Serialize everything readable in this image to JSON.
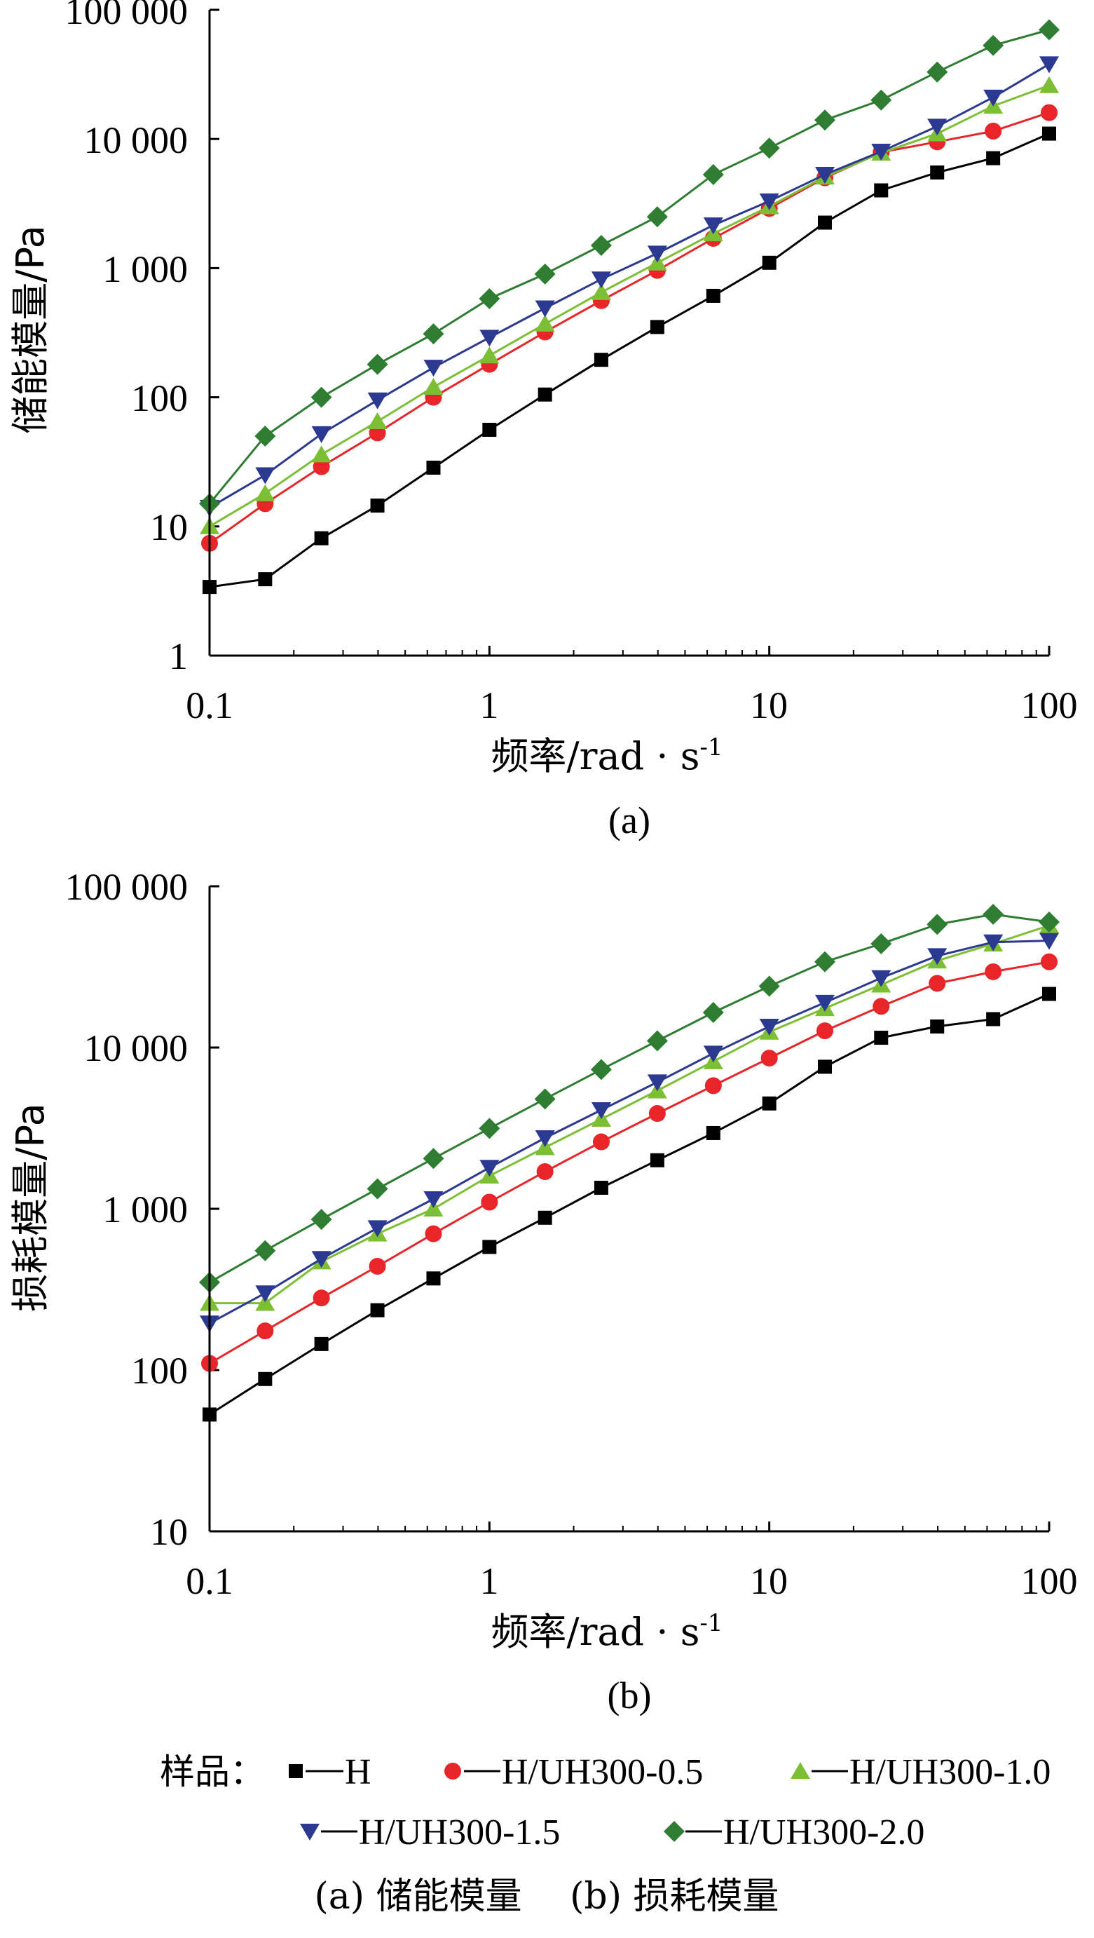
{
  "legend": {
    "title": "样品：",
    "entries": [
      "H",
      "H/UH300-0.5",
      "H/UH300-1.0",
      "H/UH300-1.5",
      "H/UH300-2.0"
    ]
  },
  "caption": "(a) 储能模量　 (b) 损耗模量",
  "series_styles": [
    {
      "name": "H",
      "color": "#000000",
      "marker": "square"
    },
    {
      "name": "H/UH300-0.5",
      "color": "#e8262a",
      "marker": "circle"
    },
    {
      "name": "H/UH300-1.0",
      "color": "#7cbf34",
      "marker": "triangle-up"
    },
    {
      "name": "H/UH300-1.5",
      "color": "#2b3990",
      "marker": "triangle-down"
    },
    {
      "name": "H/UH300-2.0",
      "color": "#2e7d32",
      "marker": "diamond"
    }
  ],
  "chart_data": [
    {
      "type": "line",
      "panel_label": "(a)",
      "xlabel": "频率/rad · s-1",
      "xlabel_main": "频率/rad · s",
      "xlabel_sup": "-1",
      "ylabel": "储能模量/Pa",
      "x_scale": "log",
      "y_scale": "log",
      "xlim": [
        0.1,
        100
      ],
      "ylim": [
        1,
        100000
      ],
      "x_ticks": [
        0.1,
        1,
        10,
        100
      ],
      "x_tick_labels": [
        "0.1",
        "1",
        "10",
        "100"
      ],
      "y_ticks": [
        1,
        10,
        100,
        1000,
        10000,
        100000
      ],
      "y_tick_labels": [
        "1",
        "10",
        "100",
        "1 000",
        "10 000",
        "100 000"
      ],
      "x": [
        0.1,
        0.158,
        0.251,
        0.398,
        0.631,
        1,
        1.58,
        2.51,
        3.98,
        6.31,
        10,
        15.8,
        25.1,
        39.8,
        63.1,
        100
      ],
      "series": [
        {
          "name": "H",
          "values": [
            3.4,
            3.9,
            8.1,
            14.5,
            28.5,
            56,
            105,
            195,
            350,
            610,
            1100,
            2250,
            4000,
            5500,
            7100,
            11000
          ]
        },
        {
          "name": "H/UH300-0.5",
          "values": [
            7.4,
            15,
            29,
            53,
            100,
            180,
            320,
            560,
            960,
            1700,
            2900,
            5000,
            7900,
            9500,
            11500,
            16000
          ]
        },
        {
          "name": "H/UH300-1.0",
          "values": [
            10,
            18,
            36,
            65,
            120,
            210,
            370,
            650,
            1100,
            1850,
            3000,
            5100,
            7800,
            11000,
            18000,
            26000
          ]
        },
        {
          "name": "H/UH300-1.5",
          "values": [
            14,
            25,
            52,
            95,
            170,
            290,
            490,
            820,
            1300,
            2150,
            3300,
            5300,
            8000,
            12500,
            21000,
            38000
          ]
        },
        {
          "name": "H/UH300-2.0",
          "values": [
            15,
            50,
            100,
            180,
            310,
            580,
            900,
            1500,
            2500,
            5300,
            8500,
            14000,
            20000,
            33000,
            53000,
            70000
          ]
        }
      ]
    },
    {
      "type": "line",
      "panel_label": "(b)",
      "xlabel": "频率/rad · s-1",
      "xlabel_main": "频率/rad · s",
      "xlabel_sup": "-1",
      "ylabel": "损耗模量/Pa",
      "x_scale": "log",
      "y_scale": "log",
      "xlim": [
        0.1,
        100
      ],
      "ylim": [
        10,
        100000
      ],
      "x_ticks": [
        0.1,
        1,
        10,
        100
      ],
      "x_tick_labels": [
        "0.1",
        "1",
        "10",
        "100"
      ],
      "y_ticks": [
        10,
        100,
        1000,
        10000,
        100000
      ],
      "y_tick_labels": [
        "10",
        "100",
        "1 000",
        "10 000",
        "100 000"
      ],
      "x": [
        0.1,
        0.158,
        0.251,
        0.398,
        0.631,
        1,
        1.58,
        2.51,
        3.98,
        6.31,
        10,
        15.8,
        25.1,
        39.8,
        63.1,
        100
      ],
      "series": [
        {
          "name": "H",
          "values": [
            53,
            88,
            145,
            235,
            370,
            580,
            880,
            1350,
            2000,
            2950,
            4500,
            7600,
            11500,
            13500,
            15000,
            21500
          ]
        },
        {
          "name": "H/UH300-0.5",
          "values": [
            110,
            175,
            280,
            440,
            700,
            1100,
            1700,
            2600,
            3900,
            5800,
            8600,
            12700,
            18000,
            25000,
            29500,
            34000
          ]
        },
        {
          "name": "H/UH300-1.0",
          "values": [
            260,
            260,
            470,
            700,
            1000,
            1600,
            2400,
            3600,
            5400,
            8200,
            12500,
            17500,
            24500,
            34500,
            44000,
            57000
          ]
        },
        {
          "name": "H/UH300-1.5",
          "values": [
            195,
            300,
            490,
            760,
            1150,
            1800,
            2750,
            4100,
            6100,
            9200,
            13500,
            19000,
            27000,
            37000,
            45000,
            46000
          ]
        },
        {
          "name": "H/UH300-2.0",
          "values": [
            350,
            550,
            860,
            1330,
            2050,
            3150,
            4800,
            7300,
            11000,
            16500,
            24000,
            34000,
            44000,
            58000,
            67000,
            60000
          ]
        }
      ]
    }
  ]
}
